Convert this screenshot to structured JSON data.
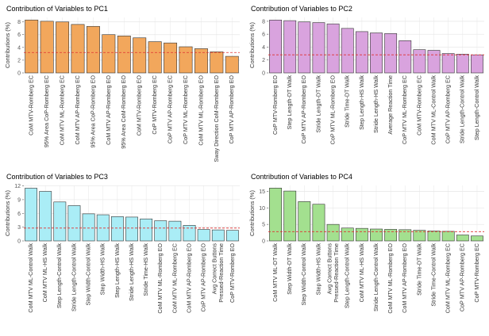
{
  "chart_data": [
    {
      "type": "bar",
      "title": "Contribution of Variables to PC1",
      "y_label": "Contributions (%)",
      "color": "#f2a75c",
      "categories": [
        "CoM MTV-Romberg EC",
        "95% Area CoP-Romberg EC",
        "CoM MTV ML-Romberg EC",
        "CoM MTV AP-Romberg EC",
        "95% Area CoP-Romberg EO",
        "CoM MTV AP-Romberg EO",
        "95% Area CoM-Romberg EO",
        "CoM MTV-Romberg EO",
        "CoP MTV-Romberg EC",
        "CoP MTV AP-Romberg EC",
        "CoP MTV ML-Romberg EC",
        "CoM MTV ML-Romberg EO",
        "Sway Direction CoM-Romberg EO",
        "CoP MTV AP-Romberg EO"
      ],
      "values": [
        8.3,
        8.1,
        8.0,
        7.6,
        7.3,
        6.0,
        5.8,
        5.5,
        4.9,
        4.7,
        4.1,
        3.8,
        3.3,
        2.6
      ],
      "ylim": [
        0,
        8.7
      ],
      "yticks": [
        0,
        2,
        4,
        6,
        8
      ],
      "grid": true,
      "reference_line": 3.2
    },
    {
      "type": "bar",
      "title": "Contribution of Variables to PC2",
      "y_label": "Contributions (%)",
      "color": "#d9a3de",
      "categories": [
        "CoP MTV-Romberg EO",
        "Step Length-DT Walk",
        "CoP MTV AP-Romberg EO",
        "Stride Length-DT Walk",
        "CoP MTV ML-Romberg EO",
        "Stride Time-DT Walk",
        "Step Length-HS Walk",
        "Stride Length-HS Walk",
        "Average Reaction Time",
        "CoP MTV ML-Romberg EC",
        "CoM MTV-Romberg EC",
        "CoM MTV ML-Control Walk",
        "CoP MTV AP-Romberg EC",
        "Stride Length-Control Walk",
        "Step Length-Control Walk"
      ],
      "values": [
        8.2,
        8.1,
        7.9,
        7.8,
        7.6,
        6.9,
        6.4,
        6.2,
        6.1,
        5.0,
        3.6,
        3.5,
        3.0,
        2.9,
        2.8
      ],
      "ylim": [
        0,
        8.6
      ],
      "yticks": [
        0,
        2,
        4,
        6,
        8
      ],
      "grid": true,
      "reference_line": 2.8
    },
    {
      "type": "bar",
      "title": "Contribution of Variables to PC3",
      "y_label": "Contributions (%)",
      "color": "#aaedf6",
      "categories": [
        "CoM MTV ML-Control Walk",
        "CoM MTV ML-HS Walk",
        "Step Length-Control Walk",
        "Stride Length-Control Walk",
        "Step Width-Control Walk",
        "Step Width-HS Walk",
        "Step Length-HS Walk",
        "Stride Length-HS Walk",
        "Stride Time-HS Walk",
        "CoM MTV ML-Romberg EO",
        "CoM MTV ML-Romberg EC",
        "CoM MTV AP-Romberg EO",
        "CoP MTV AP-Romberg EO",
        "Avg Correct Buttons\nPressed-Reaction Time",
        "CoP MTV-Romberg EO"
      ],
      "values": [
        11.5,
        10.8,
        8.5,
        7.7,
        5.9,
        5.7,
        5.3,
        5.2,
        4.8,
        4.4,
        4.3,
        3.4,
        2.5,
        2.4,
        2.3
      ],
      "ylim": [
        0,
        12.1
      ],
      "yticks": [
        0,
        3,
        6,
        9,
        12
      ],
      "grid": true,
      "reference_line": 2.8
    },
    {
      "type": "bar",
      "title": "Contribution of Variables to PC4",
      "y_label": "Contributions (%)",
      "color": "#a3e08f",
      "categories": [
        "CoM MTV ML-DT Walk",
        "Step Width-DT Walk",
        "Step Width-Control Walk",
        "Step Width-HS Walk",
        "Avg Correct Buttons\nPressed-Reaction Time",
        "Step Length-Control Walk",
        "CoM MTV ML-HS Walk",
        "Stride Length-Control Walk",
        "CoM MTV ML-Romberg EO",
        "CoM MTV AP-Romberg EO",
        "Stride Time-DT Walk",
        "Stride Time-Control Walk",
        "CoM MTV ML-Romberg EC",
        "CoP MTV AP-Romberg EC",
        "CoP MTV-Romberg EC"
      ],
      "values": [
        16.0,
        15.1,
        11.9,
        11.1,
        5.0,
        3.9,
        3.8,
        3.6,
        3.5,
        3.4,
        3.2,
        3.0,
        2.9,
        1.8,
        1.5
      ],
      "ylim": [
        0,
        16.8
      ],
      "yticks": [
        0,
        5,
        10,
        15
      ],
      "grid": true,
      "reference_line": 2.8
    }
  ]
}
